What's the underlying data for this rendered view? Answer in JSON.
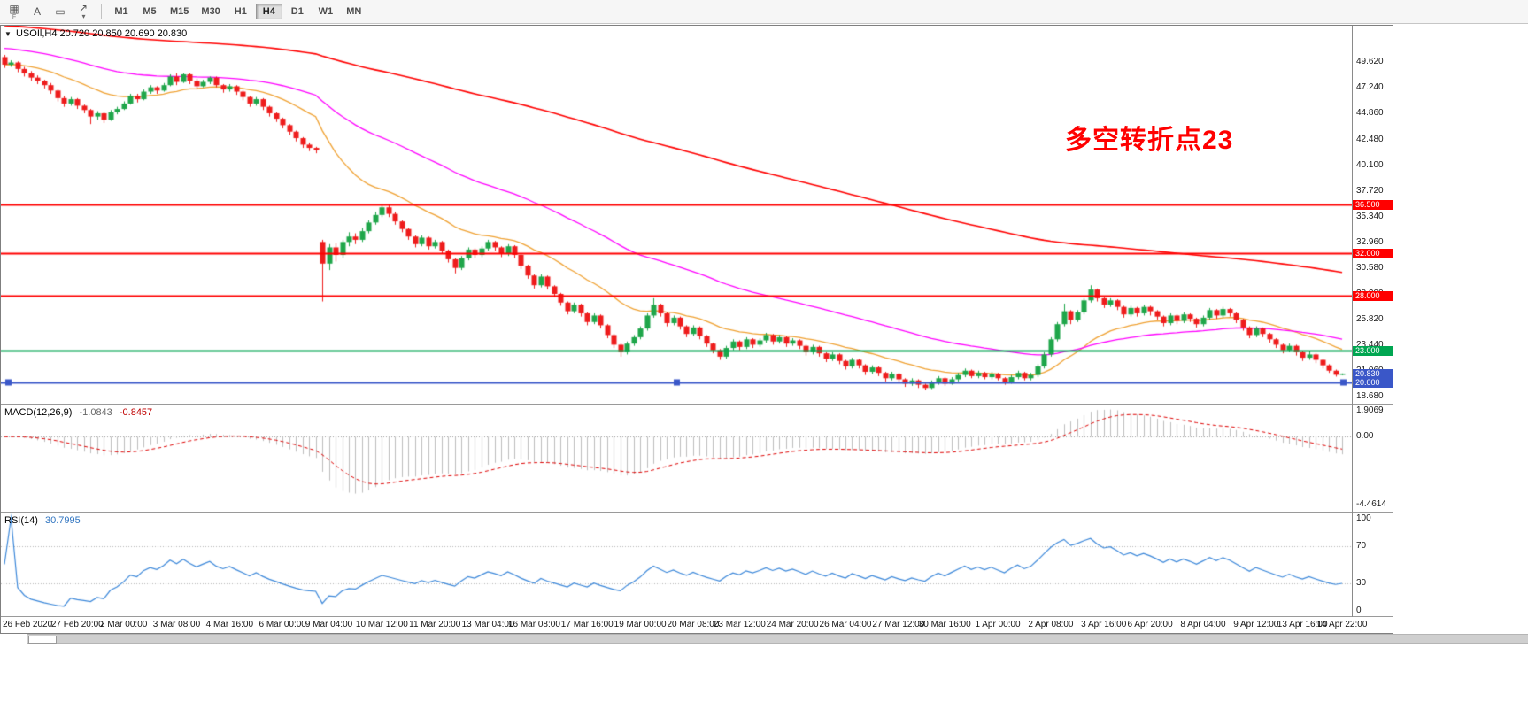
{
  "toolbar": {
    "tools": [
      {
        "glyph": "▦",
        "caption": "F"
      },
      {
        "glyph": "A",
        "caption": ""
      },
      {
        "glyph": "▭",
        "caption": ""
      },
      {
        "glyph": "↗",
        "caption": "",
        "dropdown": "▾"
      }
    ],
    "timeframes": {
      "labels": [
        "M1",
        "M5",
        "M15",
        "M30",
        "H1",
        "H4",
        "D1",
        "W1",
        "MN"
      ],
      "active": "H4"
    }
  },
  "chart": {
    "collapse_glyph": "▼",
    "title_symbol": "USOIl,H4",
    "title_ohlc": "20.720 20.850 20.690 20.830",
    "annotation": "多空转折点23"
  },
  "chart_data": {
    "type": "candlestick",
    "symbol": "USOIl",
    "timeframe": "H4",
    "ohlc_display": {
      "open": "20.720",
      "high": "20.850",
      "low": "20.690",
      "close": "20.830"
    },
    "colors": {
      "up": "#1fa64a",
      "down": "#ee1c1c"
    },
    "price_axis": {
      "y_max": 53.0,
      "y_min": 18.05,
      "labels": [
        "49.620",
        "47.240",
        "44.860",
        "42.480",
        "40.100",
        "37.720",
        "35.340",
        "32.960",
        "30.580",
        "28.200",
        "25.820",
        "23.440",
        "21.060",
        "18.680"
      ]
    },
    "hlines": [
      {
        "value": 36.5,
        "label": "36.500",
        "color": "#ff0000",
        "width": 2
      },
      {
        "value": 32.0,
        "label": "32.000",
        "color": "#ff0000",
        "width": 2
      },
      {
        "value": 28.0,
        "label": "28.000",
        "color": "#ff0000",
        "width": 2
      },
      {
        "value": 23.0,
        "label": "23.000",
        "color": "#00a651",
        "width": 2
      },
      {
        "value": 20.0,
        "label": "20.000",
        "color": "#3a57c8",
        "width": 2,
        "handles": true
      }
    ],
    "price_tag": {
      "value": 20.83,
      "label": "20.830",
      "color": "#3a57c8"
    },
    "ma": [
      {
        "name": "ma-fast",
        "period": 20,
        "seed_offset": 0,
        "color": "#efa132",
        "width": 1.3
      },
      {
        "name": "ma-mid",
        "period": 55,
        "seed_offset": 1.5,
        "color": "#ff00ff",
        "width": 1.3
      },
      {
        "name": "ma-slow",
        "period": 200,
        "seed_offset": 3.6,
        "color": "#ff0000",
        "width": 1.6
      }
    ],
    "macd": {
      "label": "MACD(12,26,9)",
      "value_main": "-1.0843",
      "value_signal": "-0.8457",
      "fast": 12,
      "slow": 26,
      "signal": 9,
      "hist_color": "#bdbdbd",
      "signal_color": "#dd0000",
      "y_max": 2.1,
      "y_min": -4.9,
      "axis": [
        {
          "label": "1.9069",
          "value": 1.9069
        },
        {
          "label": "0.00",
          "value": 0
        },
        {
          "label": "-4.4614",
          "value": -4.4614
        }
      ]
    },
    "rsi": {
      "label": "RSI(14)",
      "value": "30.7995",
      "period": 14,
      "color": "#3b87d9",
      "levels": [
        70,
        30
      ],
      "axis": [
        {
          "label": "100",
          "value": 100
        },
        {
          "label": "70",
          "value": 70
        },
        {
          "label": "30",
          "value": 30
        },
        {
          "label": "0",
          "value": 0
        }
      ]
    },
    "x_ticks": [
      {
        "label": "26 Feb 2020",
        "bar": 0
      },
      {
        "label": "27 Feb 20:00",
        "bar": 11
      },
      {
        "label": "2 Mar 00:00",
        "bar": 18
      },
      {
        "label": "3 Mar 08:00",
        "bar": 26
      },
      {
        "label": "4 Mar 16:00",
        "bar": 34
      },
      {
        "label": "6 Mar 00:00",
        "bar": 42
      },
      {
        "label": "9 Mar 04:00",
        "bar": 49
      },
      {
        "label": "10 Mar 12:00",
        "bar": 57
      },
      {
        "label": "11 Mar 20:00",
        "bar": 65
      },
      {
        "label": "13 Mar 04:00",
        "bar": 73
      },
      {
        "label": "16 Mar 08:00",
        "bar": 80
      },
      {
        "label": "17 Mar 16:00",
        "bar": 88
      },
      {
        "label": "19 Mar 00:00",
        "bar": 96
      },
      {
        "label": "20 Mar 08:00",
        "bar": 104
      },
      {
        "label": "23 Mar 12:00",
        "bar": 111
      },
      {
        "label": "24 Mar 20:00",
        "bar": 119
      },
      {
        "label": "26 Mar 04:00",
        "bar": 127
      },
      {
        "label": "27 Mar 12:00",
        "bar": 135
      },
      {
        "label": "30 Mar 16:00",
        "bar": 142
      },
      {
        "label": "1 Apr 00:00",
        "bar": 150
      },
      {
        "label": "2 Apr 08:00",
        "bar": 158
      },
      {
        "label": "3 Apr 16:00",
        "bar": 166
      },
      {
        "label": "6 Apr 20:00",
        "bar": 173
      },
      {
        "label": "8 Apr 04:00",
        "bar": 181
      },
      {
        "label": "9 Apr 12:00",
        "bar": 189
      },
      {
        "label": "13 Apr 16:00",
        "bar": 196
      },
      {
        "label": "14 Apr 22:00",
        "bar": 202
      }
    ],
    "candles": [
      [
        50.1,
        50.3,
        49.1,
        49.4
      ],
      [
        49.4,
        49.8,
        49.2,
        49.6
      ],
      [
        49.6,
        49.7,
        48.7,
        49.0
      ],
      [
        49.0,
        49.2,
        48.3,
        48.6
      ],
      [
        48.6,
        48.8,
        47.9,
        48.2
      ],
      [
        48.2,
        48.4,
        47.6,
        47.9
      ],
      [
        47.9,
        48.0,
        47.2,
        47.5
      ],
      [
        47.5,
        47.7,
        46.7,
        47.0
      ],
      [
        47.0,
        47.1,
        46.0,
        46.3
      ],
      [
        46.3,
        46.5,
        45.5,
        45.8
      ],
      [
        45.8,
        46.4,
        45.6,
        46.2
      ],
      [
        46.2,
        46.3,
        45.3,
        45.6
      ],
      [
        45.6,
        45.7,
        44.9,
        45.2
      ],
      [
        45.2,
        45.3,
        43.9,
        44.6
      ],
      [
        44.6,
        45.1,
        44.3,
        44.9
      ],
      [
        44.9,
        45.0,
        44.0,
        44.3
      ],
      [
        44.3,
        45.2,
        44.2,
        45.0
      ],
      [
        45.0,
        45.5,
        44.8,
        45.3
      ],
      [
        45.3,
        46.0,
        45.2,
        45.8
      ],
      [
        45.8,
        46.7,
        45.7,
        46.5
      ],
      [
        46.5,
        46.7,
        45.9,
        46.2
      ],
      [
        46.2,
        47.1,
        46.1,
        46.9
      ],
      [
        46.9,
        47.5,
        46.7,
        47.3
      ],
      [
        47.3,
        47.4,
        46.7,
        47.0
      ],
      [
        47.0,
        47.7,
        46.9,
        47.5
      ],
      [
        47.5,
        48.5,
        47.4,
        48.3
      ],
      [
        48.3,
        48.6,
        47.5,
        47.8
      ],
      [
        47.8,
        48.6,
        47.7,
        48.5
      ],
      [
        48.5,
        48.6,
        47.6,
        47.9
      ],
      [
        47.9,
        48.1,
        47.1,
        47.4
      ],
      [
        47.4,
        48.0,
        47.3,
        47.8
      ],
      [
        47.8,
        48.3,
        47.6,
        48.2
      ],
      [
        48.2,
        48.3,
        47.3,
        47.5
      ],
      [
        47.5,
        47.6,
        46.8,
        47.1
      ],
      [
        47.1,
        47.6,
        46.9,
        47.4
      ],
      [
        47.4,
        47.5,
        46.6,
        46.9
      ],
      [
        46.9,
        47.0,
        46.1,
        46.4
      ],
      [
        46.4,
        46.5,
        45.5,
        45.8
      ],
      [
        45.8,
        46.4,
        45.6,
        46.2
      ],
      [
        46.2,
        46.3,
        45.2,
        45.5
      ],
      [
        45.5,
        45.6,
        44.6,
        44.9
      ],
      [
        44.9,
        45.0,
        44.1,
        44.4
      ],
      [
        44.4,
        44.5,
        43.5,
        43.8
      ],
      [
        43.8,
        43.9,
        42.9,
        43.2
      ],
      [
        43.2,
        43.3,
        42.3,
        42.6
      ],
      [
        42.6,
        42.7,
        41.7,
        42.0
      ],
      [
        42.0,
        42.2,
        41.4,
        41.7
      ],
      [
        41.7,
        41.8,
        41.2,
        41.5
      ],
      [
        33.0,
        33.2,
        27.5,
        31.0
      ],
      [
        31.0,
        32.8,
        30.4,
        32.5
      ],
      [
        32.5,
        32.9,
        31.2,
        31.8
      ],
      [
        31.8,
        33.2,
        31.5,
        33.0
      ],
      [
        33.0,
        33.9,
        32.6,
        33.5
      ],
      [
        33.5,
        33.8,
        32.8,
        33.2
      ],
      [
        33.2,
        34.3,
        33.0,
        34.0
      ],
      [
        34.0,
        35.0,
        33.8,
        34.8
      ],
      [
        34.8,
        35.8,
        34.6,
        35.5
      ],
      [
        35.5,
        36.5,
        35.3,
        36.2
      ],
      [
        36.2,
        36.4,
        35.3,
        35.6
      ],
      [
        35.6,
        35.8,
        34.6,
        34.9
      ],
      [
        34.9,
        35.0,
        33.9,
        34.2
      ],
      [
        34.2,
        34.3,
        33.2,
        33.5
      ],
      [
        33.5,
        33.6,
        32.5,
        32.8
      ],
      [
        32.8,
        33.6,
        32.6,
        33.4
      ],
      [
        33.4,
        33.5,
        32.3,
        32.6
      ],
      [
        32.6,
        33.2,
        32.4,
        33.0
      ],
      [
        33.0,
        33.1,
        31.9,
        32.2
      ],
      [
        32.2,
        32.3,
        31.1,
        31.4
      ],
      [
        31.4,
        31.5,
        30.1,
        30.6
      ],
      [
        30.6,
        31.7,
        30.4,
        31.5
      ],
      [
        31.5,
        32.5,
        31.3,
        32.3
      ],
      [
        32.3,
        32.4,
        31.5,
        31.8
      ],
      [
        31.8,
        32.6,
        31.6,
        32.4
      ],
      [
        32.4,
        33.2,
        32.2,
        33.0
      ],
      [
        33.0,
        33.1,
        32.2,
        32.5
      ],
      [
        32.5,
        32.6,
        31.6,
        31.9
      ],
      [
        31.9,
        32.8,
        31.7,
        32.6
      ],
      [
        32.6,
        32.7,
        31.5,
        31.8
      ],
      [
        31.8,
        31.9,
        30.5,
        30.8
      ],
      [
        30.8,
        30.9,
        29.6,
        29.9
      ],
      [
        29.9,
        30.0,
        28.7,
        29.0
      ],
      [
        29.0,
        30.0,
        28.8,
        29.8
      ],
      [
        29.8,
        29.9,
        28.6,
        28.9
      ],
      [
        28.9,
        29.0,
        27.9,
        28.2
      ],
      [
        28.2,
        28.3,
        27.1,
        27.4
      ],
      [
        27.4,
        27.5,
        26.3,
        26.6
      ],
      [
        26.6,
        27.4,
        26.4,
        27.2
      ],
      [
        27.2,
        27.3,
        26.1,
        26.4
      ],
      [
        26.4,
        26.5,
        25.3,
        25.6
      ],
      [
        25.6,
        26.4,
        25.4,
        26.2
      ],
      [
        26.2,
        26.3,
        25.0,
        25.3
      ],
      [
        25.3,
        25.4,
        24.1,
        24.4
      ],
      [
        24.4,
        24.5,
        23.2,
        23.5
      ],
      [
        23.5,
        23.6,
        22.4,
        22.8
      ],
      [
        22.8,
        23.8,
        22.6,
        23.6
      ],
      [
        23.6,
        24.4,
        23.4,
        24.2
      ],
      [
        24.2,
        25.2,
        24.0,
        25.0
      ],
      [
        25.0,
        26.4,
        24.8,
        26.2
      ],
      [
        26.2,
        27.8,
        26.0,
        27.2
      ],
      [
        27.2,
        27.3,
        26.1,
        26.4
      ],
      [
        26.4,
        26.5,
        25.2,
        25.5
      ],
      [
        25.5,
        26.2,
        25.3,
        26.0
      ],
      [
        26.0,
        26.1,
        24.9,
        25.2
      ],
      [
        25.2,
        25.3,
        24.2,
        24.5
      ],
      [
        24.5,
        25.3,
        24.3,
        25.1
      ],
      [
        25.1,
        25.2,
        24.0,
        24.3
      ],
      [
        24.3,
        24.4,
        23.3,
        23.6
      ],
      [
        23.6,
        23.7,
        22.7,
        23.0
      ],
      [
        23.0,
        23.1,
        22.1,
        22.4
      ],
      [
        22.4,
        23.4,
        22.2,
        23.2
      ],
      [
        23.2,
        24.0,
        23.0,
        23.8
      ],
      [
        23.8,
        23.9,
        23.0,
        23.3
      ],
      [
        23.3,
        24.2,
        23.1,
        24.0
      ],
      [
        24.0,
        24.1,
        23.2,
        23.5
      ],
      [
        23.5,
        24.1,
        23.3,
        23.9
      ],
      [
        23.9,
        24.6,
        23.7,
        24.4
      ],
      [
        24.4,
        24.5,
        23.5,
        23.8
      ],
      [
        23.8,
        24.4,
        23.6,
        24.2
      ],
      [
        24.2,
        24.3,
        23.3,
        23.6
      ],
      [
        23.6,
        24.1,
        23.4,
        23.9
      ],
      [
        23.9,
        24.0,
        23.1,
        23.4
      ],
      [
        23.4,
        23.5,
        22.5,
        22.8
      ],
      [
        22.8,
        23.5,
        22.6,
        23.3
      ],
      [
        23.3,
        23.4,
        22.4,
        22.7
      ],
      [
        22.7,
        22.8,
        21.9,
        22.2
      ],
      [
        22.2,
        22.8,
        22.0,
        22.6
      ],
      [
        22.6,
        22.7,
        21.7,
        22.0
      ],
      [
        22.0,
        22.1,
        21.2,
        21.5
      ],
      [
        21.5,
        22.3,
        21.3,
        22.1
      ],
      [
        22.1,
        22.2,
        21.3,
        21.6
      ],
      [
        21.6,
        21.7,
        20.7,
        21.0
      ],
      [
        21.0,
        21.6,
        20.8,
        21.4
      ],
      [
        21.4,
        21.5,
        20.6,
        20.9
      ],
      [
        20.9,
        21.0,
        20.1,
        20.4
      ],
      [
        20.4,
        21.0,
        20.2,
        20.8
      ],
      [
        20.8,
        20.9,
        20.0,
        20.3
      ],
      [
        20.3,
        20.4,
        19.6,
        19.9
      ],
      [
        19.9,
        20.4,
        19.7,
        20.2
      ],
      [
        20.2,
        20.3,
        19.5,
        19.8
      ],
      [
        19.8,
        19.9,
        19.3,
        19.5
      ],
      [
        19.5,
        20.2,
        19.4,
        20.0
      ],
      [
        20.0,
        20.6,
        19.8,
        20.4
      ],
      [
        20.4,
        20.5,
        19.7,
        19.9
      ],
      [
        19.9,
        20.5,
        19.8,
        20.3
      ],
      [
        20.3,
        20.9,
        20.1,
        20.7
      ],
      [
        20.7,
        21.3,
        20.5,
        21.1
      ],
      [
        21.1,
        21.2,
        20.4,
        20.6
      ],
      [
        20.6,
        21.1,
        20.4,
        20.9
      ],
      [
        20.9,
        21.0,
        20.3,
        20.5
      ],
      [
        20.5,
        21.0,
        20.3,
        20.8
      ],
      [
        20.8,
        20.9,
        20.2,
        20.4
      ],
      [
        20.4,
        20.5,
        19.8,
        20.0
      ],
      [
        20.0,
        20.7,
        19.9,
        20.5
      ],
      [
        20.5,
        21.1,
        20.3,
        20.9
      ],
      [
        20.9,
        21.0,
        20.2,
        20.4
      ],
      [
        20.4,
        20.9,
        20.2,
        20.7
      ],
      [
        20.7,
        21.7,
        20.5,
        21.5
      ],
      [
        21.5,
        22.8,
        21.3,
        22.6
      ],
      [
        22.6,
        24.2,
        22.4,
        24.0
      ],
      [
        24.0,
        25.6,
        23.8,
        25.4
      ],
      [
        25.4,
        27.3,
        25.2,
        26.6
      ],
      [
        26.6,
        26.7,
        25.4,
        25.8
      ],
      [
        25.8,
        26.7,
        25.6,
        26.5
      ],
      [
        26.5,
        27.8,
        26.3,
        27.6
      ],
      [
        27.6,
        29.0,
        27.4,
        28.6
      ],
      [
        28.6,
        28.7,
        27.5,
        27.8
      ],
      [
        27.8,
        27.9,
        26.9,
        27.2
      ],
      [
        27.2,
        27.8,
        27.0,
        27.6
      ],
      [
        27.6,
        27.7,
        26.7,
        27.0
      ],
      [
        27.0,
        27.1,
        26.0,
        26.3
      ],
      [
        26.3,
        27.1,
        26.1,
        26.9
      ],
      [
        26.9,
        27.0,
        26.1,
        26.4
      ],
      [
        26.4,
        27.2,
        26.2,
        27.0
      ],
      [
        27.0,
        27.1,
        26.2,
        26.6
      ],
      [
        26.6,
        26.7,
        25.8,
        26.1
      ],
      [
        26.1,
        26.2,
        25.2,
        25.5
      ],
      [
        25.5,
        26.4,
        25.3,
        26.2
      ],
      [
        26.2,
        26.3,
        25.4,
        25.7
      ],
      [
        25.7,
        26.5,
        25.5,
        26.3
      ],
      [
        26.3,
        26.4,
        25.6,
        25.9
      ],
      [
        25.9,
        26.0,
        25.1,
        25.4
      ],
      [
        25.4,
        26.2,
        25.2,
        26.0
      ],
      [
        26.0,
        26.9,
        25.8,
        26.7
      ],
      [
        26.7,
        26.8,
        25.9,
        26.2
      ],
      [
        26.2,
        27.0,
        26.0,
        26.8
      ],
      [
        26.8,
        26.9,
        26.1,
        26.4
      ],
      [
        26.4,
        26.5,
        25.5,
        25.8
      ],
      [
        25.8,
        25.9,
        24.8,
        25.1
      ],
      [
        25.1,
        25.2,
        24.1,
        24.4
      ],
      [
        24.4,
        25.2,
        24.2,
        25.0
      ],
      [
        25.0,
        25.1,
        24.2,
        24.5
      ],
      [
        24.5,
        24.6,
        23.7,
        24.0
      ],
      [
        24.0,
        24.1,
        23.2,
        23.5
      ],
      [
        23.5,
        23.6,
        22.7,
        23.0
      ],
      [
        23.0,
        23.6,
        22.8,
        23.4
      ],
      [
        23.4,
        23.5,
        22.5,
        22.8
      ],
      [
        22.8,
        22.9,
        22.0,
        22.3
      ],
      [
        22.3,
        22.9,
        22.1,
        22.6
      ],
      [
        22.6,
        22.7,
        21.8,
        22.1
      ],
      [
        22.1,
        22.2,
        21.3,
        21.6
      ],
      [
        21.6,
        21.7,
        20.9,
        21.1
      ],
      [
        21.1,
        21.2,
        20.55,
        20.72
      ],
      [
        20.72,
        20.85,
        20.69,
        20.83
      ]
    ]
  }
}
